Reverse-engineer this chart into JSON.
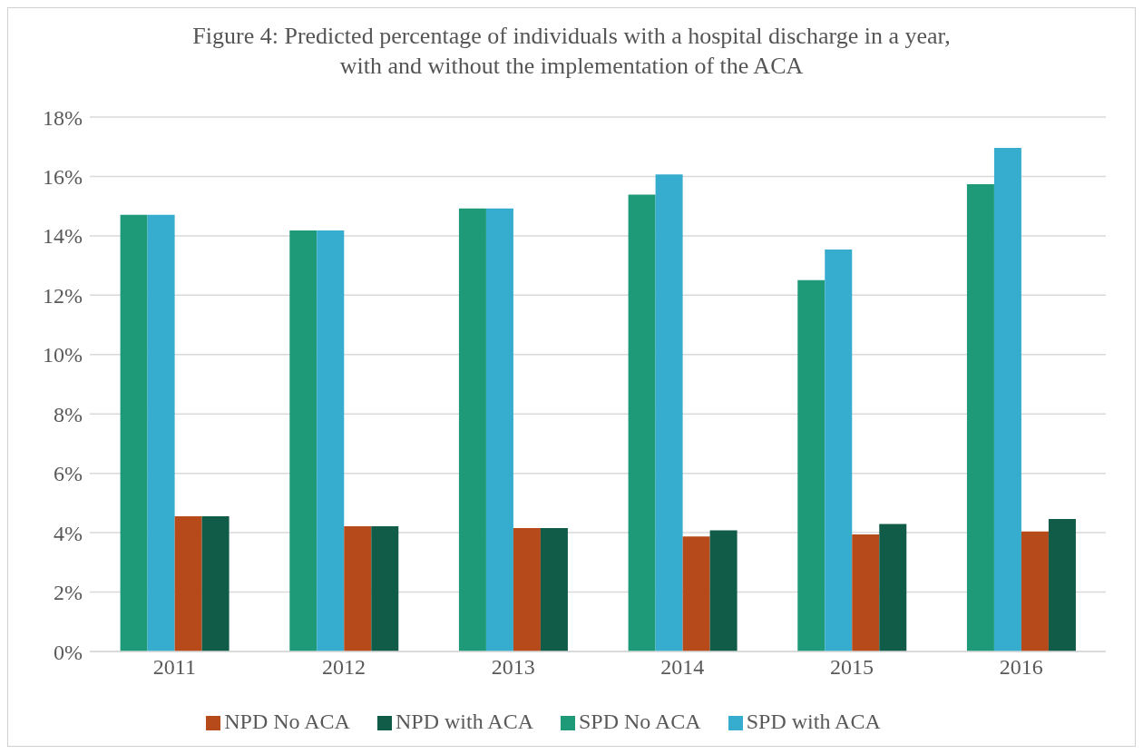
{
  "chart_data": {
    "type": "bar",
    "title": "Figure 4: Predicted percentage of individuals with a hospital discharge in a year, with and without the implementation of the ACA",
    "categories": [
      "2011",
      "2012",
      "2013",
      "2014",
      "2015",
      "2016"
    ],
    "series": [
      {
        "name": "SPD No ACA",
        "color": "#1e9a78",
        "values": [
          14.71,
          14.18,
          14.92,
          15.39,
          12.51,
          15.74
        ]
      },
      {
        "name": "SPD with ACA",
        "color": "#36adce",
        "values": [
          14.71,
          14.18,
          14.92,
          16.07,
          13.54,
          16.96
        ]
      },
      {
        "name": "NPD No ACA",
        "color": "#b64a1b",
        "values": [
          4.55,
          4.22,
          4.16,
          3.87,
          3.94,
          4.04
        ]
      },
      {
        "name": "NPD with ACA",
        "color": "#105c49",
        "values": [
          4.55,
          4.22,
          4.16,
          4.08,
          4.29,
          4.46
        ]
      }
    ],
    "ylim": [
      0,
      18
    ],
    "yticks": [
      {
        "value": 0,
        "label": "0%"
      },
      {
        "value": 2,
        "label": "2%"
      },
      {
        "value": 4,
        "label": "4%"
      },
      {
        "value": 6,
        "label": "6%"
      },
      {
        "value": 8,
        "label": "8%"
      },
      {
        "value": 10,
        "label": "10%"
      },
      {
        "value": 12,
        "label": "12%"
      },
      {
        "value": 14,
        "label": "14%"
      },
      {
        "value": 16,
        "label": "16%"
      },
      {
        "value": 18,
        "label": "18%"
      }
    ],
    "grid": "y",
    "legend": "bottom"
  }
}
